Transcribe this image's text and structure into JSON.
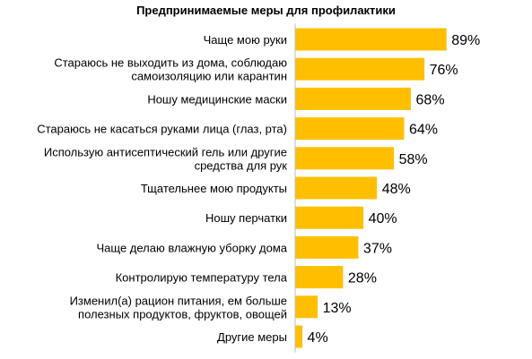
{
  "chart_data": {
    "type": "bar",
    "orientation": "horizontal",
    "title": "Предпринимаемые меры для профилактики",
    "categories": [
      [
        "Чаще мою руки"
      ],
      [
        "Стараюсь не выходить из дома, соблюдаю",
        "самоизоляцию или карантин"
      ],
      [
        "Ношу медицинские маски"
      ],
      [
        "Стараюсь не касаться руками лица (глаз, рта)"
      ],
      [
        "Использую антисептический гель или другие",
        "средства для рук"
      ],
      [
        "Тщательнее мою продукты"
      ],
      [
        "Ношу перчатки"
      ],
      [
        "Чаще делаю влажную уборку дома"
      ],
      [
        "Контролирую температуру тела"
      ],
      [
        "Изменил(а) рацион питания, ем больше",
        "полезных продуктов, фруктов, овощей"
      ],
      [
        "Другие меры"
      ]
    ],
    "values": [
      89,
      76,
      68,
      64,
      58,
      48,
      40,
      37,
      28,
      13,
      4
    ],
    "value_labels": [
      "89%",
      "76%",
      "68%",
      "64%",
      "58%",
      "48%",
      "40%",
      "37%",
      "28%",
      "13%",
      "4%"
    ],
    "xlim": [
      0,
      100
    ],
    "grid": false,
    "legend": "none",
    "bar_color": "#FFBF00",
    "axis_color": "#BFBFBF"
  }
}
